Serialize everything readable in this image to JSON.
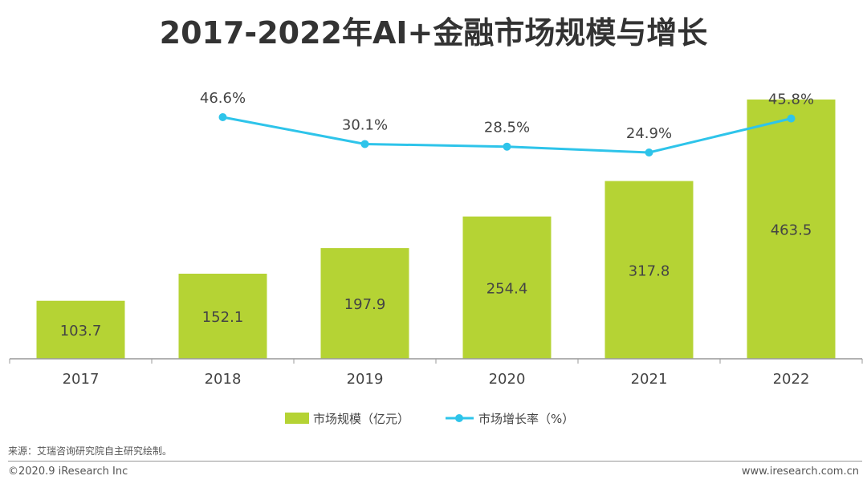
{
  "title": "2017-2022年AI+金融市场规模与增长",
  "chart_data": {
    "type": "bar+line",
    "title": "2017-2022年AI+金融市场规模与增长",
    "categories": [
      "2017",
      "2018",
      "2019",
      "2020",
      "2021",
      "2022"
    ],
    "series": [
      {
        "name": "市场规模（亿元）",
        "type": "bar",
        "color": "#b5d334",
        "values": [
          103.7,
          152.1,
          197.9,
          254.4,
          317.8,
          463.5
        ],
        "labels": [
          "103.7",
          "152.1",
          "197.9",
          "254.4",
          "317.8",
          "463.5"
        ]
      },
      {
        "name": "市场增长率（%）",
        "type": "line",
        "color": "#2ec4ea",
        "values": [
          null,
          46.6,
          30.1,
          28.5,
          24.9,
          45.8
        ],
        "labels": [
          "",
          "46.6%",
          "30.1%",
          "28.5%",
          "24.9%",
          "45.8%"
        ]
      }
    ],
    "bar_ylim": [
      0,
      475
    ],
    "line_ylim": [
      -135,
      60
    ],
    "legend": [
      "市场规模（亿元）",
      "市场增长率（%）"
    ],
    "legend_position": "bottom"
  },
  "footer": {
    "source": "来源：艾瑞咨询研究院自主研究绘制。",
    "copyright": "©2020.9 iResearch Inc",
    "website": "www.iresearch.com.cn"
  }
}
